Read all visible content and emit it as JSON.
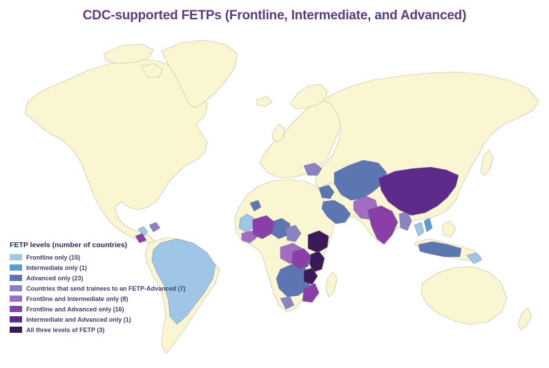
{
  "title": "CDC-supported FETPs (Frontline, Intermediate, and Advanced)",
  "legend": {
    "title": "FETP levels (number of countries)",
    "items": [
      {
        "label": "Frontline only (15)",
        "color": "#9fc6e7"
      },
      {
        "label": "Intermediate only (1)",
        "color": "#5b9bd5"
      },
      {
        "label": "Advanced only (23)",
        "color": "#5b76b0"
      },
      {
        "label": "Countries that send trainees to an FETP-Advanced (7)",
        "color": "#8c82c2"
      },
      {
        "label": "Frontline and Intermediate only (8)",
        "color": "#a26cc0"
      },
      {
        "label": "Frontline and Advanced only (16)",
        "color": "#8a3fa8"
      },
      {
        "label": "Intermediate and Advanced only (1)",
        "color": "#5e2a8c"
      },
      {
        "label": "All three levels of FETP (3)",
        "color": "#3a1b55"
      }
    ]
  },
  "colors": {
    "land": "#faf6d2",
    "ocean": "#ffffff",
    "title": "#5b3a86"
  }
}
